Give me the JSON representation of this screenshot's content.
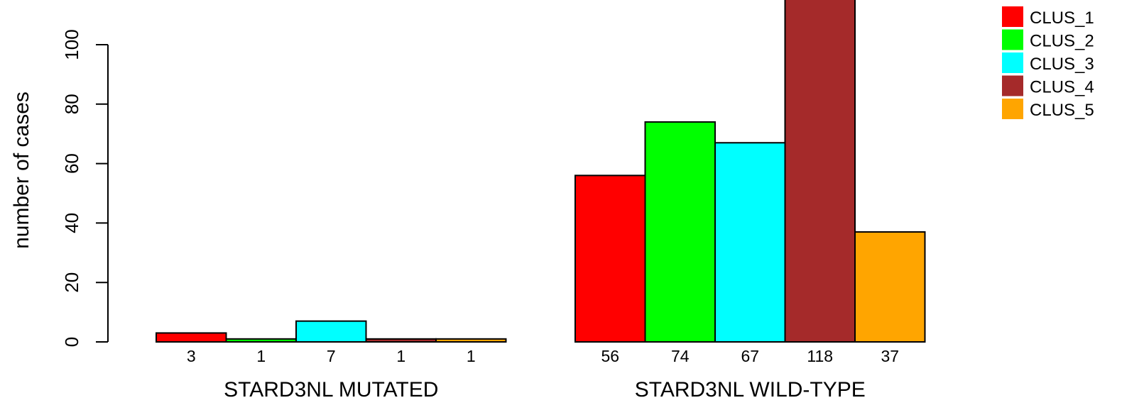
{
  "chart_data": {
    "type": "bar",
    "ylabel": "number of cases",
    "ylim": [
      0,
      118
    ],
    "yticks": [
      0,
      20,
      40,
      60,
      80,
      100
    ],
    "groups": [
      "STARD3NL MUTATED",
      "STARD3NL WILD-TYPE"
    ],
    "series": [
      {
        "name": "CLUS_1",
        "color": "#ff0000",
        "values": [
          3,
          56
        ]
      },
      {
        "name": "CLUS_2",
        "color": "#00ff00",
        "values": [
          1,
          74
        ]
      },
      {
        "name": "CLUS_3",
        "color": "#00ffff",
        "values": [
          7,
          67
        ]
      },
      {
        "name": "CLUS_4",
        "color": "#a52a2a",
        "values": [
          1,
          118
        ]
      },
      {
        "name": "CLUS_5",
        "color": "#ffa500",
        "values": [
          1,
          37
        ]
      }
    ],
    "legend_position": "top-right",
    "grid": false
  }
}
